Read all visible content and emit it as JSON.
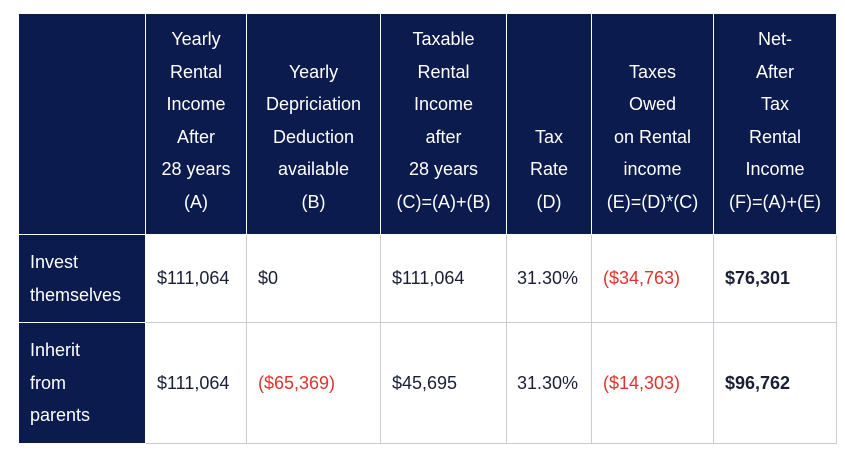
{
  "colors": {
    "header_bg": "#0b1b4d",
    "header_text": "#ffffff",
    "negative": "#e0332e",
    "body_text": "#1a1f36",
    "grid": "#c9ccd4"
  },
  "headers": [
    {
      "lines": []
    },
    {
      "lines": [
        "Yearly",
        "Rental",
        "Income",
        "After",
        "28 years",
        "(A)"
      ]
    },
    {
      "lines": [
        "Yearly",
        "Depriciation",
        "Deduction",
        "available",
        "(B)"
      ]
    },
    {
      "lines": [
        "Taxable",
        "Rental",
        "Income",
        "after",
        "28 years",
        "(C)=(A)+(B)"
      ]
    },
    {
      "lines": [
        "Tax",
        "Rate",
        "(D)"
      ]
    },
    {
      "lines": [
        "Taxes",
        "Owed",
        "on Rental",
        "income",
        "(E)=(D)*(C)"
      ]
    },
    {
      "lines": [
        "Net-",
        "After",
        "Tax",
        "Rental",
        "Income",
        "(F)=(A)+(E)"
      ]
    }
  ],
  "rows": [
    {
      "label_lines": [
        "Invest",
        "themselves"
      ],
      "cells": [
        "$111,064",
        "$0",
        "$111,064",
        "31.30%",
        "($34,763)",
        "$76,301"
      ]
    },
    {
      "label_lines": [
        "Inherit",
        "from",
        "parents"
      ],
      "cells": [
        "$111,064",
        "($65,369)",
        "$45,695",
        "31.30%",
        "($14,303)",
        "$96,762"
      ]
    }
  ]
}
